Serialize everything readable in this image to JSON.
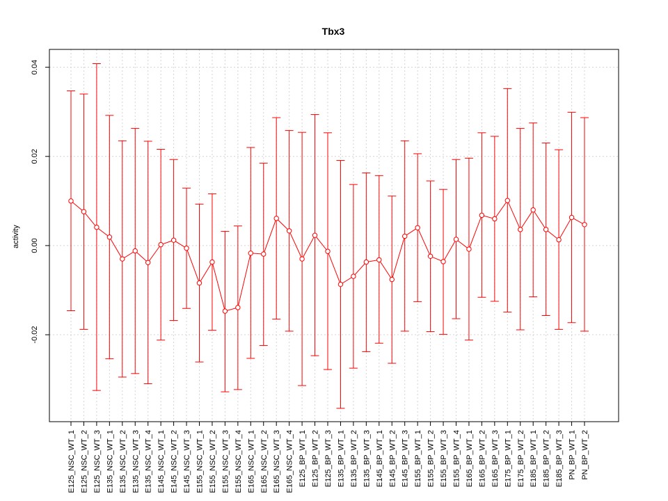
{
  "chart_data": {
    "type": "line",
    "title": "Tbx3",
    "xlabel": "",
    "ylabel": "activity",
    "ylim": [
      -0.0395,
      0.044
    ],
    "yticks": [
      -0.02,
      0.0,
      0.02,
      0.04
    ],
    "ytick_labels": [
      "-0.02",
      "0.00",
      "0.02",
      "0.04"
    ],
    "grid": true,
    "error_bars": true,
    "colors": {
      "series": "#ff0000",
      "grid": "#d3d3d3",
      "axis": "#000000"
    },
    "categories": [
      "E125_NSC_WT_1",
      "E125_NSC_WT_2",
      "E125_NSC_WT_3",
      "E135_NSC_WT_1",
      "E135_NSC_WT_2",
      "E135_NSC_WT_3",
      "E135_NSC_WT_4",
      "E145_NSC_WT_1",
      "E145_NSC_WT_2",
      "E145_NSC_WT_3",
      "E155_NSC_WT_1",
      "E155_NSC_WT_2",
      "E155_NSC_WT_3",
      "E155_NSC_WT_4",
      "E165_NSC_WT_1",
      "E165_NSC_WT_2",
      "E165_NSC_WT_3",
      "E165_NSC_WT_4",
      "E125_BP_WT_1",
      "E125_BP_WT_2",
      "E125_BP_WT_3",
      "E135_BP_WT_1",
      "E135_BP_WT_2",
      "E135_BP_WT_3",
      "E145_BP_WT_1",
      "E145_BP_WT_2",
      "E145_BP_WT_3",
      "E155_BP_WT_1",
      "E155_BP_WT_2",
      "E155_BP_WT_3",
      "E155_BP_WT_4",
      "E165_BP_WT_1",
      "E165_BP_WT_2",
      "E165_BP_WT_3",
      "E175_BP_WT_1",
      "E175_BP_WT_2",
      "E185_BP_WT_1",
      "E185_BP_WT_2",
      "E185_BP_WT_3",
      "PN_BP_WT_1",
      "PN_BP_WT_2"
    ],
    "series": [
      {
        "values": [
          0.01,
          0.0076,
          0.0041,
          0.0019,
          -0.003,
          -0.0012,
          -0.0038,
          0.0002,
          0.0012,
          -0.0006,
          -0.0084,
          -0.0037,
          -0.0147,
          -0.0139,
          -0.0017,
          -0.0019,
          0.0061,
          0.0033,
          -0.003,
          0.0023,
          -0.0013,
          -0.0087,
          -0.0069,
          -0.0037,
          -0.0032,
          -0.0076,
          0.0021,
          0.004,
          -0.0024,
          -0.0036,
          0.0014,
          -0.0008,
          0.0068,
          0.006,
          0.0101,
          0.0036,
          0.008,
          0.0036,
          0.0013,
          0.0063,
          0.0047
        ],
        "upper": [
          0.0347,
          0.034,
          0.0408,
          0.0292,
          0.0235,
          0.0263,
          0.0234,
          0.0216,
          0.0193,
          0.0129,
          0.0093,
          0.0116,
          0.0032,
          0.0044,
          0.022,
          0.0185,
          0.0287,
          0.0258,
          0.0254,
          0.0294,
          0.0253,
          0.0191,
          0.0137,
          0.0163,
          0.0157,
          0.0111,
          0.0235,
          0.0206,
          0.0145,
          0.0126,
          0.0193,
          0.0196,
          0.0253,
          0.0245,
          0.0352,
          0.0263,
          0.0275,
          0.023,
          0.0215,
          0.0299,
          0.0287
        ],
        "lower": [
          -0.0146,
          -0.0188,
          -0.0325,
          -0.0254,
          -0.0295,
          -0.0287,
          -0.031,
          -0.0212,
          -0.0168,
          -0.0141,
          -0.0261,
          -0.019,
          -0.0328,
          -0.0323,
          -0.0253,
          -0.0224,
          -0.0165,
          -0.0192,
          -0.0314,
          -0.0247,
          -0.0278,
          -0.0365,
          -0.0275,
          -0.0238,
          -0.0219,
          -0.0264,
          -0.0192,
          -0.0126,
          -0.0193,
          -0.0199,
          -0.0164,
          -0.0212,
          -0.0116,
          -0.0125,
          -0.0149,
          -0.0189,
          -0.0115,
          -0.0157,
          -0.0188,
          -0.0173,
          -0.0192
        ]
      }
    ]
  }
}
